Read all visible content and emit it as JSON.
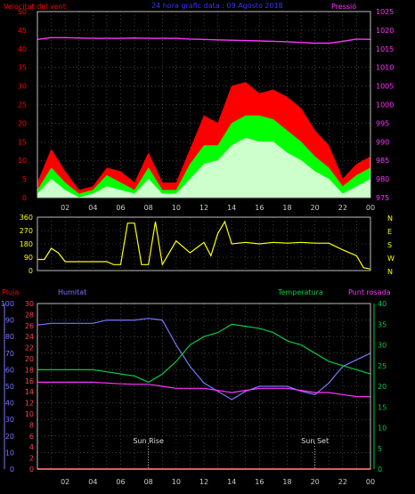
{
  "titles": {
    "wind": "Velocitat del vent",
    "date": "24 hora grafic data : 09 Agosto 2018",
    "pressure": "Pressió",
    "rain": "Pluja",
    "humidity": "Humitat",
    "temperature": "Temperatura",
    "dewpoint": "Punt rosada"
  },
  "colors": {
    "wind_gust": "#ff0000",
    "wind_avg": "#00ff00",
    "wind_lull": "#ccffcc",
    "pressure": "#ff33ff",
    "direction": "#ffff00",
    "rain": "#ff0000",
    "humidity": "#7777ff",
    "temperature": "#00cc44",
    "dewpoint": "#ff33ff",
    "date": "#3333ff",
    "cardinal": "#ffff00"
  },
  "x_labels": [
    "02",
    "04",
    "06",
    "08",
    "10",
    "12",
    "14",
    "16",
    "18",
    "20",
    "22",
    "00"
  ],
  "markers": {
    "sunrise": "Sun Rise",
    "sunset": "Sun Set"
  },
  "chart_data": [
    {
      "type": "area",
      "title": "Velocitat del vent",
      "ylim": [
        0,
        50
      ],
      "yticks": [
        0,
        5,
        10,
        15,
        20,
        25,
        30,
        35,
        40,
        45,
        50
      ],
      "y2label": "Pressió",
      "y2lim": [
        975,
        1025
      ],
      "y2ticks": [
        975,
        980,
        985,
        990,
        995,
        1000,
        1005,
        1010,
        1015,
        1020,
        1025
      ],
      "x_hours": [
        0,
        1,
        2,
        3,
        4,
        5,
        6,
        7,
        8,
        9,
        10,
        11,
        12,
        13,
        14,
        15,
        16,
        17,
        18,
        19,
        20,
        21,
        22,
        23,
        24
      ],
      "series": [
        {
          "name": "gust",
          "values": [
            4,
            13,
            7,
            2,
            3,
            8,
            7,
            4,
            12,
            4,
            4,
            13,
            22,
            20,
            30,
            31,
            28,
            29,
            27,
            24,
            18,
            14,
            5,
            9,
            11
          ]
        },
        {
          "name": "avg",
          "values": [
            2,
            8,
            4,
            1,
            2,
            6,
            4,
            2,
            8,
            2,
            2,
            9,
            14,
            14,
            20,
            22,
            22,
            21,
            18,
            15,
            11,
            8,
            3,
            6,
            8
          ]
        },
        {
          "name": "lull",
          "values": [
            1,
            5,
            2,
            0,
            1,
            3,
            2,
            1,
            5,
            1,
            1,
            5,
            9,
            10,
            14,
            16,
            15,
            15,
            12,
            10,
            7,
            5,
            1,
            3,
            5
          ]
        },
        {
          "name": "Pressió",
          "values": [
            1017.5,
            1018,
            1018,
            1017.9,
            1017.8,
            1017.8,
            1017.8,
            1017.9,
            1017.8,
            1017.8,
            1017.8,
            1017.6,
            1017.5,
            1017.4,
            1017.3,
            1017.2,
            1017.1,
            1017,
            1016.9,
            1016.7,
            1016.5,
            1016.5,
            1017,
            1017.6,
            1017.5
          ]
        }
      ]
    },
    {
      "type": "line",
      "ylim": [
        0,
        360
      ],
      "yticks": [
        0,
        90,
        180,
        270,
        360
      ],
      "y2ticks": [
        "N",
        "W",
        "S",
        "E",
        "N"
      ],
      "x_hours": [
        0,
        0.5,
        1,
        1.5,
        2,
        3,
        4,
        5,
        5.5,
        6,
        6.5,
        7,
        7.5,
        8,
        8.5,
        9,
        10,
        11,
        12,
        12.5,
        13,
        13.5,
        14,
        15,
        16,
        17,
        18,
        19,
        20,
        21,
        22,
        23,
        23.5,
        24
      ],
      "series": [
        {
          "name": "direction",
          "values": [
            75,
            75,
            150,
            120,
            60,
            60,
            60,
            60,
            40,
            40,
            320,
            320,
            40,
            40,
            330,
            40,
            200,
            120,
            190,
            100,
            250,
            330,
            180,
            190,
            180,
            190,
            185,
            190,
            185,
            185,
            140,
            100,
            20,
            10
          ]
        }
      ]
    },
    {
      "type": "line",
      "title": "Humitat",
      "ylim": [
        0,
        100
      ],
      "yticks": [
        0,
        10,
        20,
        30,
        40,
        50,
        60,
        70,
        80,
        90,
        100
      ],
      "rain_ticks": [
        0,
        2,
        4,
        6,
        8,
        10,
        12,
        14,
        16,
        18,
        20,
        22,
        24,
        26,
        28,
        30
      ],
      "temp_ticks": [
        0,
        5,
        10,
        15,
        20,
        25,
        30,
        35,
        40
      ],
      "x_hours": [
        0,
        1,
        2,
        3,
        4,
        5,
        6,
        7,
        8,
        9,
        10,
        11,
        12,
        13,
        14,
        15,
        16,
        17,
        18,
        19,
        20,
        21,
        22,
        23,
        24
      ],
      "series": [
        {
          "name": "Humitat",
          "values": [
            87,
            88,
            88,
            88,
            88,
            90,
            90,
            90,
            91,
            90,
            75,
            62,
            52,
            47,
            42,
            47,
            50,
            50,
            50,
            47,
            45,
            52,
            62,
            66,
            70
          ]
        },
        {
          "name": "Temperatura",
          "values": [
            24,
            24,
            24,
            24,
            24,
            23.5,
            23,
            22.5,
            21,
            23,
            26,
            30,
            32,
            33,
            35,
            34.5,
            34,
            33,
            31,
            30,
            28,
            26,
            25,
            24,
            23
          ]
        },
        {
          "name": "Punt rosada",
          "values": [
            21,
            21,
            21,
            21,
            21,
            20.8,
            20.6,
            20.5,
            20.5,
            20,
            19.5,
            19.5,
            19.5,
            19,
            18.5,
            19,
            19.5,
            19.5,
            19.5,
            19,
            18.5,
            18.5,
            18,
            17.5,
            17.5
          ]
        },
        {
          "name": "Pluja",
          "values": [
            0,
            0,
            0,
            0,
            0,
            0,
            0,
            0,
            0,
            0,
            0,
            0,
            0,
            0,
            0,
            0,
            0,
            0,
            0,
            0,
            0,
            0,
            0,
            0,
            0
          ]
        }
      ]
    }
  ]
}
